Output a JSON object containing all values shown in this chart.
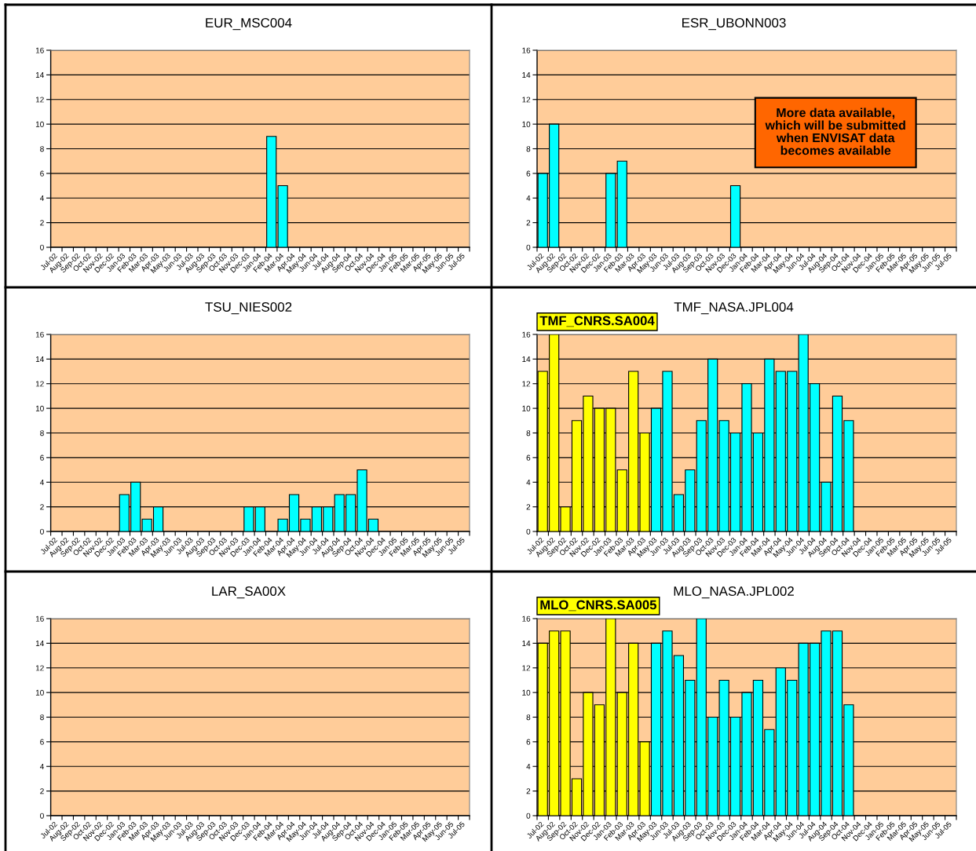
{
  "chart_data": [
    {
      "type": "bar",
      "title": "EUR_MSC004",
      "categories": [
        "Jul-02",
        "Aug-02",
        "Sep-02",
        "Oct-02",
        "Nov-02",
        "Dec-02",
        "Jan-03",
        "Feb-03",
        "Mar-03",
        "Apr-03",
        "May-03",
        "Jun-03",
        "Jul-03",
        "Aug-03",
        "Sep-03",
        "Oct-03",
        "Nov-03",
        "Dec-03",
        "Jan-04",
        "Feb-04",
        "Mar-04",
        "Apr-04",
        "May-04",
        "Jun-04",
        "Jul-04",
        "Aug-04",
        "Sep-04",
        "Oct-04",
        "Nov-04",
        "Dec-04",
        "Jan-05",
        "Feb-05",
        "Mar-05",
        "Apr-05",
        "May-05",
        "Jun-05",
        "Jul-05"
      ],
      "values": [
        null,
        null,
        null,
        null,
        null,
        null,
        null,
        null,
        null,
        null,
        null,
        null,
        null,
        null,
        null,
        null,
        null,
        null,
        null,
        9,
        5,
        null,
        null,
        null,
        null,
        null,
        null,
        null,
        null,
        null,
        null,
        null,
        null,
        null,
        null,
        null,
        null
      ],
      "color": "#00ffff",
      "ylim": [
        0,
        16
      ],
      "yticks": [
        0,
        2,
        4,
        6,
        8,
        10,
        12,
        14,
        16
      ],
      "grid": "y"
    },
    {
      "type": "bar",
      "title": "ESR_UBONN003",
      "categories": [
        "Jul-02",
        "Aug-02",
        "Sep-02",
        "Oct-02",
        "Nov-02",
        "Dec-02",
        "Jan-03",
        "Feb-03",
        "Mar-03",
        "Apr-03",
        "May-03",
        "Jun-03",
        "Jul-03",
        "Aug-03",
        "Sep-03",
        "Oct-03",
        "Nov-03",
        "Dec-03",
        "Jan-04",
        "Feb-04",
        "Mar-04",
        "Apr-04",
        "May-04",
        "Jun-04",
        "Jul-04",
        "Aug-04",
        "Sep-04",
        "Oct-04",
        "Nov-04",
        "Dec-04",
        "Jan-05",
        "Feb-05",
        "Mar-05",
        "Apr-05",
        "May-05",
        "Jun-05",
        "Jul-05"
      ],
      "values": [
        6,
        10,
        null,
        null,
        null,
        null,
        6,
        7,
        null,
        null,
        null,
        null,
        null,
        null,
        null,
        null,
        null,
        5,
        null,
        null,
        null,
        null,
        null,
        null,
        null,
        null,
        null,
        null,
        null,
        null,
        null,
        null,
        null,
        null,
        null,
        null,
        null
      ],
      "color": "#00ffff",
      "ylim": [
        0,
        16
      ],
      "yticks": [
        0,
        2,
        4,
        6,
        8,
        10,
        12,
        14,
        16
      ],
      "grid": "y",
      "annotations": [
        "More data available,\nwhich will be submitted\nwhen ENVISAT data\nbecomes available"
      ]
    },
    {
      "type": "bar",
      "title": "TSU_NIES002",
      "categories": [
        "Jul-02",
        "Aug-02",
        "Sep-02",
        "Oct-02",
        "Nov-02",
        "Dec-02",
        "Jan-03",
        "Feb-03",
        "Mar-03",
        "Apr-03",
        "May-03",
        "Jun-03",
        "Jul-03",
        "Aug-03",
        "Sep-03",
        "Oct-03",
        "Nov-03",
        "Dec-03",
        "Jan-04",
        "Feb-04",
        "Mar-04",
        "Apr-04",
        "May-04",
        "Jun-04",
        "Jul-04",
        "Aug-04",
        "Sep-04",
        "Oct-04",
        "Nov-04",
        "Dec-04",
        "Jan-05",
        "Feb-05",
        "Mar-05",
        "Apr-05",
        "May-05",
        "Jun-05",
        "Jul-05"
      ],
      "values": [
        null,
        null,
        null,
        null,
        null,
        null,
        3,
        4,
        1,
        2,
        null,
        null,
        null,
        null,
        null,
        null,
        null,
        2,
        2,
        null,
        1,
        3,
        1,
        2,
        2,
        3,
        3,
        5,
        1,
        null,
        null,
        null,
        null,
        null,
        null,
        null,
        null
      ],
      "color": "#00ffff",
      "ylim": [
        0,
        16
      ],
      "yticks": [
        0,
        2,
        4,
        6,
        8,
        10,
        12,
        14,
        16
      ],
      "grid": "y"
    },
    {
      "type": "bar",
      "title": "TMF_NASA.JPL004",
      "categories": [
        "Jul-02",
        "Aug-02",
        "Sep-02",
        "Oct-02",
        "Nov-02",
        "Dec-02",
        "Jan-03",
        "Feb-03",
        "Mar-03",
        "Apr-03",
        "May-03",
        "Jun-03",
        "Jul-03",
        "Aug-03",
        "Sep-03",
        "Oct-03",
        "Nov-03",
        "Dec-03",
        "Jan-04",
        "Feb-04",
        "Mar-04",
        "Apr-04",
        "May-04",
        "Jun-04",
        "Jul-04",
        "Aug-04",
        "Sep-04",
        "Oct-04",
        "Nov-04",
        "Dec-04",
        "Jan-05",
        "Feb-05",
        "Mar-05",
        "Apr-05",
        "May-05",
        "Jun-05",
        "Jul-05"
      ],
      "series": [
        {
          "name": "TMF_CNRS.SA004",
          "color": "#ffff00",
          "values": [
            13,
            16,
            2,
            9,
            11,
            10,
            10,
            5,
            13,
            8,
            null,
            null,
            null,
            null,
            null,
            null,
            null,
            null,
            null,
            null,
            null,
            null,
            null,
            null,
            null,
            null,
            null,
            null,
            null,
            null,
            null,
            null,
            null,
            null,
            null,
            null,
            null
          ]
        },
        {
          "color": "#00ffff",
          "values": [
            null,
            null,
            null,
            null,
            null,
            null,
            null,
            null,
            null,
            null,
            10,
            13,
            3,
            5,
            9,
            14,
            9,
            8,
            12,
            8,
            14,
            13,
            13,
            16,
            12,
            4,
            11,
            9,
            null,
            null,
            null,
            null,
            null,
            null,
            null,
            null,
            null
          ]
        }
      ],
      "ylim": [
        0,
        16
      ],
      "yticks": [
        0,
        2,
        4,
        6,
        8,
        10,
        12,
        14,
        16
      ],
      "grid": "y",
      "legend": "top left"
    },
    {
      "type": "bar",
      "title": "LAR_SA00X",
      "categories": [
        "Jul-02",
        "Aug-02",
        "Sep-02",
        "Oct-02",
        "Nov-02",
        "Dec-02",
        "Jan-03",
        "Feb-03",
        "Mar-03",
        "Apr-03",
        "May-03",
        "Jun-03",
        "Jul-03",
        "Aug-03",
        "Sep-03",
        "Oct-03",
        "Nov-03",
        "Dec-03",
        "Jan-04",
        "Feb-04",
        "Mar-04",
        "Apr-04",
        "May-04",
        "Jun-04",
        "Jul-04",
        "Aug-04",
        "Sep-04",
        "Oct-04",
        "Nov-04",
        "Dec-04",
        "Jan-05",
        "Feb-05",
        "Mar-05",
        "Apr-05",
        "May-05",
        "Jun-05",
        "Jul-05"
      ],
      "values": [
        null,
        null,
        null,
        null,
        null,
        null,
        null,
        null,
        null,
        null,
        null,
        null,
        null,
        null,
        null,
        null,
        null,
        null,
        null,
        null,
        null,
        null,
        null,
        null,
        null,
        null,
        null,
        null,
        null,
        null,
        null,
        null,
        null,
        null,
        null,
        null,
        null
      ],
      "color": "#00ffff",
      "ylim": [
        0,
        16
      ],
      "yticks": [
        0,
        2,
        4,
        6,
        8,
        10,
        12,
        14,
        16
      ],
      "grid": "y"
    },
    {
      "type": "bar",
      "title": "MLO_NASA.JPL002",
      "categories": [
        "Jul-02",
        "Aug-02",
        "Sep-02",
        "Oct-02",
        "Nov-02",
        "Dec-02",
        "Jan-03",
        "Feb-03",
        "Mar-03",
        "Apr-03",
        "May-03",
        "Jun-03",
        "Jul-03",
        "Aug-03",
        "Sep-03",
        "Oct-03",
        "Nov-03",
        "Dec-03",
        "Jan-04",
        "Feb-04",
        "Mar-04",
        "Apr-04",
        "May-04",
        "Jun-04",
        "Jul-04",
        "Aug-04",
        "Sep-04",
        "Oct-04",
        "Nov-04",
        "Dec-04",
        "Jan-05",
        "Feb-05",
        "Mar-05",
        "Apr-05",
        "May-05",
        "Jun-05",
        "Jul-05"
      ],
      "series": [
        {
          "name": "MLO_CNRS.SA005",
          "color": "#ffff00",
          "values": [
            14,
            15,
            15,
            3,
            10,
            9,
            16,
            10,
            14,
            6,
            null,
            null,
            null,
            null,
            null,
            null,
            null,
            null,
            null,
            null,
            null,
            null,
            null,
            null,
            null,
            null,
            null,
            null,
            null,
            null,
            null,
            null,
            null,
            null,
            null,
            null,
            null
          ]
        },
        {
          "color": "#00ffff",
          "values": [
            null,
            null,
            null,
            null,
            null,
            null,
            null,
            null,
            null,
            null,
            14,
            15,
            13,
            11,
            16,
            8,
            11,
            8,
            10,
            11,
            7,
            12,
            11,
            14,
            14,
            15,
            15,
            9,
            null,
            null,
            null,
            null,
            null,
            null,
            null,
            null,
            null
          ]
        }
      ],
      "ylim": [
        0,
        16
      ],
      "yticks": [
        0,
        2,
        4,
        6,
        8,
        10,
        12,
        14,
        16
      ],
      "grid": "y",
      "legend": "top left"
    }
  ]
}
